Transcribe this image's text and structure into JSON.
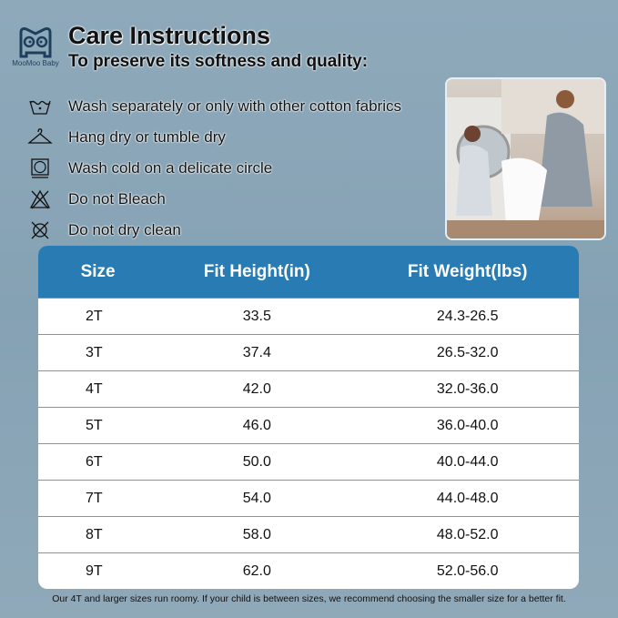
{
  "brand": "MooMoo Baby",
  "title": "Care Instructions",
  "subtitle": "To preserve its softness and quality:",
  "care_items": [
    {
      "icon": "hand-wash-icon",
      "text": "Wash separately or only with other cotton fabrics"
    },
    {
      "icon": "hanger-icon",
      "text": "Hang dry or tumble dry"
    },
    {
      "icon": "tumble-dry-icon",
      "text": "Wash cold on a delicate circle"
    },
    {
      "icon": "no-bleach-icon",
      "text": "Do not Bleach"
    },
    {
      "icon": "no-dry-clean-icon",
      "text": "Do not dry clean"
    }
  ],
  "table": {
    "headers": [
      "Size",
      "Fit Height(in)",
      "Fit Weight(lbs)"
    ],
    "rows": [
      [
        "2T",
        "33.5",
        "24.3-26.5"
      ],
      [
        "3T",
        "37.4",
        "26.5-32.0"
      ],
      [
        "4T",
        "42.0",
        "32.0-36.0"
      ],
      [
        "5T",
        "46.0",
        "36.0-40.0"
      ],
      [
        "6T",
        "50.0",
        "40.0-44.0"
      ],
      [
        "7T",
        "54.0",
        "44.0-48.0"
      ],
      [
        "8T",
        "58.0",
        "48.0-52.0"
      ],
      [
        "9T",
        "62.0",
        "52.0-56.0"
      ]
    ]
  },
  "footnote": "Our 4T and larger sizes run roomy. If your child is between sizes, we recommend choosing the smaller size for a better fit.",
  "colors": {
    "header": "#287bb3",
    "background": "#8ea9ba"
  }
}
